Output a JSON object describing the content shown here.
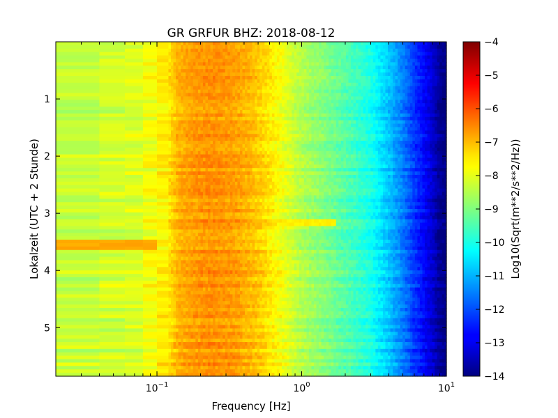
{
  "chart_data": {
    "type": "heatmap",
    "title": "GR GRFUR BHZ: 2018-08-12",
    "xlabel": "Frequency [Hz]",
    "ylabel": "Lokalzeit (UTC + 2 Stunde)",
    "xscale": "log",
    "xlim": [
      0.02,
      10
    ],
    "ylim": [
      5.85,
      0
    ],
    "x_ticks": [
      {
        "value": 0.1,
        "base": "10",
        "exp": "−1"
      },
      {
        "value": 1,
        "base": "10",
        "exp": "0"
      },
      {
        "value": 10,
        "base": "10",
        "exp": "1"
      }
    ],
    "y_ticks": [
      {
        "value": 1,
        "label": "1"
      },
      {
        "value": 2,
        "label": "2"
      },
      {
        "value": 3,
        "label": "3"
      },
      {
        "value": 4,
        "label": "4"
      },
      {
        "value": 5,
        "label": "5"
      }
    ],
    "colorbar": {
      "label": "Log10(Sqrt(m**2/s**2/Hz))",
      "colormap": "jet",
      "range": [
        -14,
        -4
      ],
      "ticks": [
        {
          "value": -4,
          "label": "−4"
        },
        {
          "value": -5,
          "label": "−5"
        },
        {
          "value": -6,
          "label": "−6"
        },
        {
          "value": -7,
          "label": "−7"
        },
        {
          "value": -8,
          "label": "−8"
        },
        {
          "value": -9,
          "label": "−9"
        },
        {
          "value": -10,
          "label": "−10"
        },
        {
          "value": -11,
          "label": "−11"
        },
        {
          "value": -12,
          "label": "−12"
        },
        {
          "value": -13,
          "label": "−13"
        },
        {
          "value": -14,
          "label": "−14"
        }
      ]
    },
    "spectrum_profile": {
      "frequency_hz": [
        0.02,
        0.03,
        0.04,
        0.06,
        0.08,
        0.1,
        0.12,
        0.14,
        0.18,
        0.25,
        0.35,
        0.5,
        0.7,
        1.0,
        1.5,
        2.0,
        3.0,
        4.0,
        5.0,
        6.0,
        7.0,
        8.0,
        9.0,
        10.0
      ],
      "log10_amplitude": [
        -8.3,
        -8.3,
        -8.2,
        -8.2,
        -8.0,
        -7.7,
        -7.5,
        -7.0,
        -6.75,
        -6.65,
        -6.8,
        -7.2,
        -7.8,
        -8.5,
        -9.0,
        -9.4,
        -10.0,
        -10.8,
        -11.5,
        -12.2,
        -12.7,
        -13.2,
        -13.8,
        -14.0
      ]
    },
    "events": [
      {
        "time_start": 3.45,
        "time_end": 3.65,
        "freq_max": 0.09,
        "log10_amplitude": -6.9
      },
      {
        "time_start": 3.08,
        "time_end": 3.2,
        "freq_min": 0.7,
        "freq_max": 1.7,
        "log10_amplitude": -7.6
      }
    ]
  }
}
